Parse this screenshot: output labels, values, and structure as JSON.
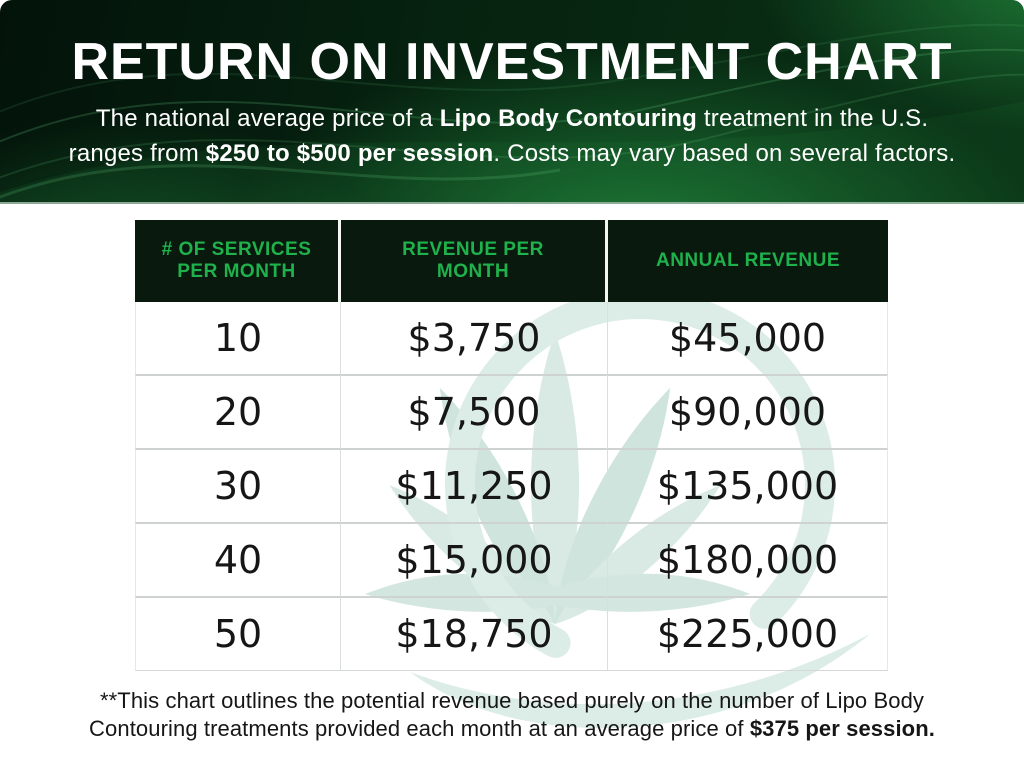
{
  "header": {
    "title": "RETURN ON INVESTMENT CHART",
    "subtitle_lines": [
      [
        {
          "text": "The national average price of a ",
          "bold": false
        },
        {
          "text": "Lipo Body Contouring",
          "bold": true
        },
        {
          "text": " treatment in the U.S.",
          "bold": false
        }
      ],
      [
        {
          "text": "ranges from ",
          "bold": false
        },
        {
          "text": "$250 to $500 per session",
          "bold": true
        },
        {
          "text": ". Costs may vary based on several factors.",
          "bold": false
        }
      ]
    ]
  },
  "table": {
    "columns": [
      "# OF SERVICES PER MONTH",
      "REVENUE PER MONTH",
      "ANNUAL REVENUE"
    ],
    "rows": [
      [
        "10",
        "$3,750",
        "$45,000"
      ],
      [
        "20",
        "$7,500",
        "$90,000"
      ],
      [
        "30",
        "$11,250",
        "$135,000"
      ],
      [
        "40",
        "$15,000",
        "$180,000"
      ],
      [
        "50",
        "$18,750",
        "$225,000"
      ]
    ]
  },
  "footnote_lines": [
    [
      {
        "text": "**This chart outlines the potential revenue based purely on the number of Lipo Body",
        "bold": false
      }
    ],
    [
      {
        "text": "Contouring treatments provided each month at an average price of ",
        "bold": false
      },
      {
        "text": "$375 per session.",
        "bold": true
      }
    ]
  ],
  "chart_data": {
    "type": "table",
    "title": "RETURN ON INVESTMENT CHART",
    "columns": [
      "# OF SERVICES PER MONTH",
      "REVENUE PER MONTH",
      "ANNUAL REVENUE"
    ],
    "rows": [
      [
        10,
        "$3,750",
        "$45,000"
      ],
      [
        20,
        "$7,500",
        "$90,000"
      ],
      [
        30,
        "$11,250",
        "$135,000"
      ],
      [
        40,
        "$15,000",
        "$180,000"
      ],
      [
        50,
        "$18,750",
        "$225,000"
      ]
    ],
    "notes": "Revenue assumes an average price of $375 per session; national average ranges from $250 to $500 per session."
  },
  "colors": {
    "accent_green": "#1fb14c",
    "table_header_bg": "#0a190d",
    "hero_dark": "#03130a",
    "hero_green": "#0a3015",
    "watermark_teal": "#d9eae4",
    "divider_gray": "#cfd3cf",
    "text_dark": "#161616",
    "text_white": "#ffffff"
  },
  "watermark": {
    "name": "leaf-logo-watermark"
  }
}
